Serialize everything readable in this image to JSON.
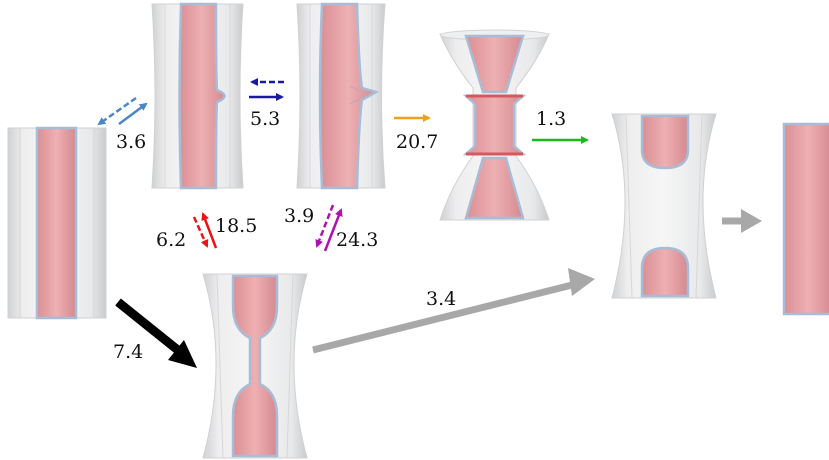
{
  "diagram": {
    "labels": {
      "start_to_neck": "3.6",
      "neck_reverse_blue": "5.3",
      "neck_to_break": "20.7",
      "break_to_caps": "1.3",
      "red_forward": "6.2",
      "red_reverse": "18.5",
      "purple_forward": "3.9",
      "purple_reverse": "24.3",
      "start_to_thin": "7.4",
      "thin_to_caps": "3.4"
    },
    "colors": {
      "core": "#e9a4a8",
      "core_edge": "#a9bcd6",
      "shell": "#e9eaeb",
      "arrow_lightblue": "#4a86c8",
      "arrow_darkblue": "#1a1a9e",
      "arrow_orange": "#f0a020",
      "arrow_green": "#1cbb1c",
      "arrow_red": "#e81414",
      "arrow_purple": "#b010b0",
      "arrow_black": "#000000",
      "arrow_gray": "#a8a8a8"
    },
    "states": [
      "straight-cylinder",
      "side-dimple",
      "side-pinch",
      "broken-bridge",
      "capped-ends",
      "thin-neck",
      "final-cylinder"
    ]
  }
}
